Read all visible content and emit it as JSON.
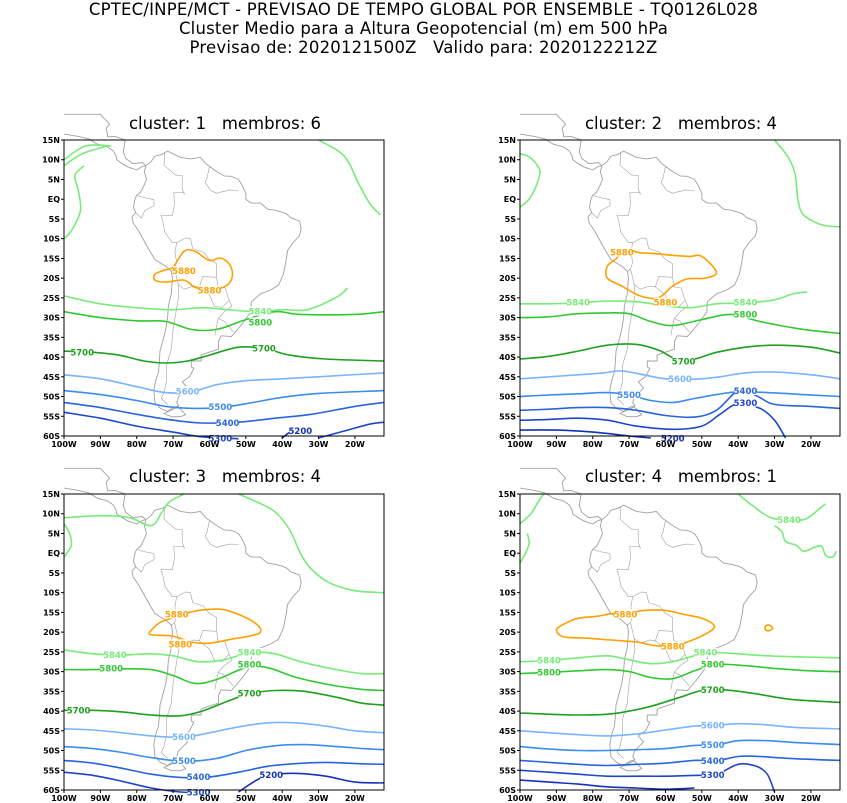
{
  "header": {
    "line1": "CPTEC/INPE/MCT - PREVISAO DE TEMPO GLOBAL POR ENSEMBLE - TQ0126L028",
    "line2": "Cluster Medio para a Altura Geopotencial (m) em 500 hPa",
    "line3": "Previsao de: 2020121500Z   Valido para: 2020122212Z"
  },
  "axes": {
    "lat_labels": [
      "15N",
      "10N",
      "5N",
      "EQ",
      "5S",
      "10S",
      "15S",
      "20S",
      "25S",
      "30S",
      "35S",
      "40S",
      "45S",
      "50S",
      "55S",
      "60S"
    ],
    "lon_labels": [
      "100W",
      "90W",
      "80W",
      "70W",
      "60W",
      "50W",
      "40W",
      "30W",
      "20W"
    ]
  },
  "colors": {
    "h5880": "#ffa000",
    "h5840": "#78eb78",
    "h5800": "#32c832",
    "h5700": "#1ea01e",
    "h5600": "#78b4ff",
    "h5500": "#3c8cf0",
    "h5400": "#2864dc",
    "h5300": "#1e46c8",
    "h5200": "#1432b4",
    "coast": "#a0a0a0"
  },
  "panels": [
    {
      "title": "cluster: 1   membros: 6",
      "labels": [
        {
          "text": "5880",
          "x": -67,
          "y": -18.2,
          "c": "h5880"
        },
        {
          "text": "5880",
          "x": -60,
          "y": -23.1,
          "c": "h5880"
        },
        {
          "text": "5840",
          "x": -46,
          "y": -28.5,
          "c": "h5840"
        },
        {
          "text": "5800",
          "x": -46,
          "y": -31.2,
          "c": "h5800"
        },
        {
          "text": "5700",
          "x": -95,
          "y": -38.8,
          "c": "h5700"
        },
        {
          "text": "5700",
          "x": -45,
          "y": -37.8,
          "c": "h5700"
        },
        {
          "text": "5600",
          "x": -66,
          "y": -48.7,
          "c": "h5600"
        },
        {
          "text": "5500",
          "x": -57,
          "y": -52.7,
          "c": "h5500"
        },
        {
          "text": "5400",
          "x": -55,
          "y": -56.7,
          "c": "h5400"
        },
        {
          "text": "5300",
          "x": -57,
          "y": -60.6,
          "c": "h5300"
        },
        {
          "text": "5200",
          "x": -35,
          "y": -58.7,
          "c": "h5200"
        }
      ]
    },
    {
      "title": "cluster: 2   membros: 4",
      "labels": [
        {
          "text": "5880",
          "x": -72,
          "y": -13.5,
          "c": "h5880"
        },
        {
          "text": "5880",
          "x": -60,
          "y": -26.2,
          "c": "h5880"
        },
        {
          "text": "5840",
          "x": -84,
          "y": -26.2,
          "c": "h5840"
        },
        {
          "text": "5840",
          "x": -38,
          "y": -26.2,
          "c": "h5840"
        },
        {
          "text": "5800",
          "x": -38,
          "y": -29.2,
          "c": "h5800"
        },
        {
          "text": "5700",
          "x": -55,
          "y": -41.1,
          "c": "h5700"
        },
        {
          "text": "5600",
          "x": -56,
          "y": -45.6,
          "c": "h5600"
        },
        {
          "text": "5500",
          "x": -70,
          "y": -49.6,
          "c": "h5500"
        },
        {
          "text": "5400",
          "x": -38,
          "y": -48.6,
          "c": "h5400"
        },
        {
          "text": "5300",
          "x": -38,
          "y": -51.6,
          "c": "h5300"
        },
        {
          "text": "5200",
          "x": -58,
          "y": -60.6,
          "c": "h5200"
        }
      ]
    },
    {
      "title": "cluster: 3   membros: 4",
      "labels": [
        {
          "text": "5880",
          "x": -69,
          "y": -15.5,
          "c": "h5880"
        },
        {
          "text": "5880",
          "x": -68,
          "y": -23.1,
          "c": "h5880"
        },
        {
          "text": "5840",
          "x": -86,
          "y": -25.8,
          "c": "h5840"
        },
        {
          "text": "5840",
          "x": -49,
          "y": -25.2,
          "c": "h5840"
        },
        {
          "text": "5800",
          "x": -87,
          "y": -29.2,
          "c": "h5800"
        },
        {
          "text": "5800",
          "x": -49,
          "y": -28.2,
          "c": "h5800"
        },
        {
          "text": "5700",
          "x": -96,
          "y": -39.8,
          "c": "h5700"
        },
        {
          "text": "5700",
          "x": -49,
          "y": -35.6,
          "c": "h5700"
        },
        {
          "text": "5600",
          "x": -67,
          "y": -46.6,
          "c": "h5600"
        },
        {
          "text": "5500",
          "x": -67,
          "y": -52.7,
          "c": "h5500"
        },
        {
          "text": "5400",
          "x": -63,
          "y": -56.7,
          "c": "h5400"
        },
        {
          "text": "5300",
          "x": -63,
          "y": -60.6,
          "c": "h5300"
        },
        {
          "text": "5200",
          "x": -43,
          "y": -56.2,
          "c": "h5200"
        }
      ]
    },
    {
      "title": "cluster: 4   membros: 1",
      "labels": [
        {
          "text": "5840",
          "x": -26,
          "y": 8.4,
          "c": "h5840"
        },
        {
          "text": "5880",
          "x": -71,
          "y": -15.5,
          "c": "h5880"
        },
        {
          "text": "5880",
          "x": -58,
          "y": -23.6,
          "c": "h5880"
        },
        {
          "text": "5840",
          "x": -92,
          "y": -27.2,
          "c": "h5840"
        },
        {
          "text": "5840",
          "x": -49,
          "y": -25.2,
          "c": "h5840"
        },
        {
          "text": "5800",
          "x": -92,
          "y": -30.2,
          "c": "h5800"
        },
        {
          "text": "5800",
          "x": -47,
          "y": -28.2,
          "c": "h5800"
        },
        {
          "text": "5700",
          "x": -47,
          "y": -34.6,
          "c": "h5700"
        },
        {
          "text": "5600",
          "x": -47,
          "y": -43.6,
          "c": "h5600"
        },
        {
          "text": "5500",
          "x": -47,
          "y": -48.6,
          "c": "h5500"
        },
        {
          "text": "5400",
          "x": -47,
          "y": -52.7,
          "c": "h5400"
        },
        {
          "text": "5300",
          "x": -47,
          "y": -56.2,
          "c": "h5300"
        }
      ]
    }
  ]
}
